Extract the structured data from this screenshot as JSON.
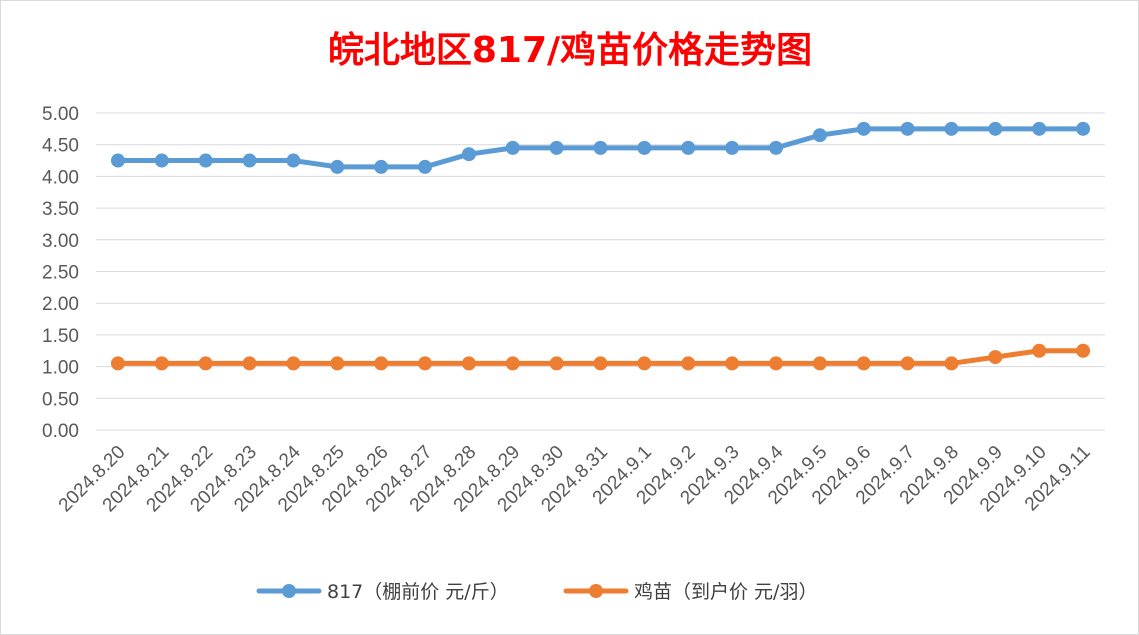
{
  "chart_data": {
    "type": "line",
    "title": "皖北地区817/鸡苗价格走势图",
    "xlabel": "",
    "ylabel": "",
    "ylim": [
      0,
      5
    ],
    "y_ticks": [
      "5.00",
      "4.50",
      "4.00",
      "3.50",
      "3.00",
      "2.50",
      "2.00",
      "1.50",
      "1.00",
      "0.50",
      "0.00"
    ],
    "grid": true,
    "legend_position": "bottom",
    "categories": [
      "2024.8.20",
      "2024.8.21",
      "2024.8.22",
      "2024.8.23",
      "2024.8.24",
      "2024.8.25",
      "2024.8.26",
      "2024.8.27",
      "2024.8.28",
      "2024.8.29",
      "2024.8.30",
      "2024.8.31",
      "2024.9.1",
      "2024.9.2",
      "2024.9.3",
      "2024.9.4",
      "2024.9.5",
      "2024.9.6",
      "2024.9.7",
      "2024.9.8",
      "2024.9.9",
      "2024.9.10",
      "2024.9.11"
    ],
    "series": [
      {
        "name": "817（棚前价 元/斤）",
        "color": "#5B9BD5",
        "values": [
          4.25,
          4.25,
          4.25,
          4.25,
          4.25,
          4.15,
          4.15,
          4.15,
          4.35,
          4.45,
          4.45,
          4.45,
          4.45,
          4.45,
          4.45,
          4.45,
          4.65,
          4.75,
          4.75,
          4.75,
          4.75,
          4.75,
          4.75
        ]
      },
      {
        "name": "鸡苗（到户价 元/羽）",
        "color": "#ED7D31",
        "values": [
          1.05,
          1.05,
          1.05,
          1.05,
          1.05,
          1.05,
          1.05,
          1.05,
          1.05,
          1.05,
          1.05,
          1.05,
          1.05,
          1.05,
          1.05,
          1.05,
          1.05,
          1.05,
          1.05,
          1.05,
          1.15,
          1.25,
          1.25
        ]
      }
    ],
    "title_color": "#FF0000",
    "gridline_color": "#D9D9D9"
  }
}
